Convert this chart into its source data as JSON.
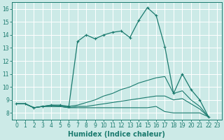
{
  "xlabel": "Humidex (Indice chaleur)",
  "bg_color": "#cceae7",
  "grid_color": "#ffffff",
  "line_color": "#1a7a6e",
  "xlim": [
    -0.5,
    23.5
  ],
  "ylim": [
    7.5,
    16.5
  ],
  "series": [
    {
      "x": [
        0,
        1,
        2,
        3,
        4,
        5,
        6,
        7,
        8,
        9,
        10,
        11,
        12,
        13,
        14,
        15,
        16,
        17,
        18,
        19,
        20,
        21,
        22
      ],
      "y": [
        8.7,
        8.7,
        8.4,
        8.5,
        8.6,
        8.6,
        8.5,
        13.5,
        14.0,
        13.7,
        14.0,
        14.2,
        14.3,
        13.8,
        15.1,
        16.1,
        15.5,
        13.1,
        9.5,
        11.0,
        9.8,
        9.0,
        7.7
      ],
      "has_markers": true
    },
    {
      "x": [
        0,
        1,
        2,
        3,
        4,
        5,
        6,
        7,
        8,
        9,
        10,
        11,
        12,
        13,
        14,
        15,
        16,
        17,
        18,
        19,
        20,
        21,
        22
      ],
      "y": [
        8.7,
        8.7,
        8.4,
        8.5,
        8.6,
        8.5,
        8.5,
        8.6,
        8.8,
        9.0,
        9.3,
        9.5,
        9.8,
        10.0,
        10.3,
        10.5,
        10.7,
        10.8,
        9.5,
        9.7,
        9.0,
        8.5,
        7.7
      ],
      "has_markers": false
    },
    {
      "x": [
        0,
        1,
        2,
        3,
        4,
        5,
        6,
        7,
        8,
        9,
        10,
        11,
        12,
        13,
        14,
        15,
        16,
        17,
        18,
        19,
        20,
        21,
        22
      ],
      "y": [
        8.7,
        8.7,
        8.4,
        8.5,
        8.5,
        8.5,
        8.4,
        8.4,
        8.4,
        8.4,
        8.4,
        8.4,
        8.4,
        8.4,
        8.4,
        8.4,
        8.5,
        8.1,
        8.0,
        8.0,
        8.0,
        8.0,
        7.7
      ],
      "has_markers": false
    },
    {
      "x": [
        0,
        1,
        2,
        3,
        4,
        5,
        6,
        7,
        8,
        9,
        10,
        11,
        12,
        13,
        14,
        15,
        16,
        17,
        18,
        19,
        20,
        21,
        22
      ],
      "y": [
        8.7,
        8.7,
        8.4,
        8.5,
        8.5,
        8.5,
        8.4,
        8.5,
        8.5,
        8.6,
        8.7,
        8.8,
        8.9,
        9.0,
        9.1,
        9.2,
        9.3,
        9.3,
        9.0,
        9.1,
        8.7,
        8.3,
        7.7
      ],
      "has_markers": false
    }
  ],
  "xticks": [
    0,
    1,
    2,
    3,
    4,
    5,
    6,
    7,
    8,
    9,
    10,
    11,
    12,
    13,
    14,
    15,
    16,
    17,
    18,
    19,
    20,
    21,
    22,
    23
  ],
  "yticks": [
    8,
    9,
    10,
    11,
    12,
    13,
    14,
    15,
    16
  ],
  "tick_fontsize": 5.5,
  "label_fontsize": 7.0
}
